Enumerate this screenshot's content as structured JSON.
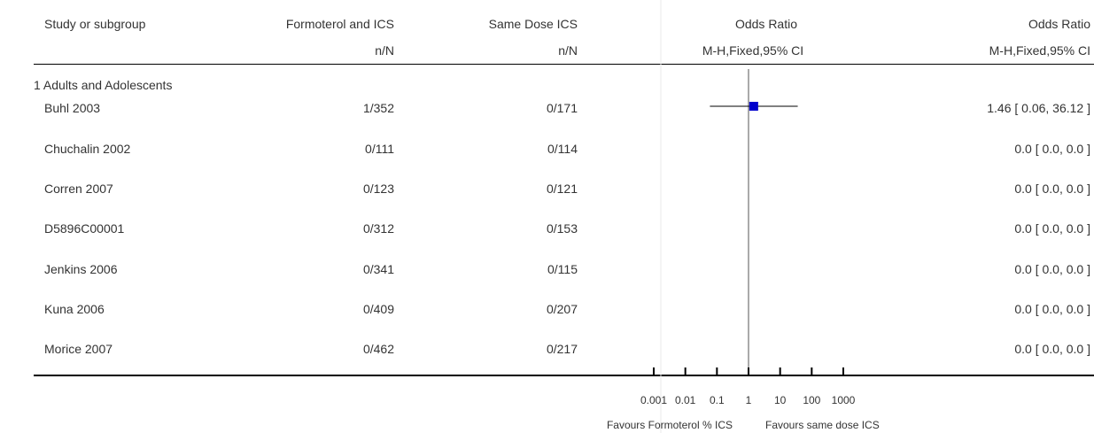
{
  "header": {
    "col_study": "Study or subgroup",
    "col_treat": "Formoterol and ICS",
    "col_ctrl": "Same Dose ICS",
    "col_or_plot": "Odds Ratio",
    "col_or_value": "Odds Ratio",
    "sub_treat": "n/N",
    "sub_ctrl": "n/N",
    "sub_plot": "M-H,Fixed,95% CI",
    "sub_value": "M-H,Fixed,95% CI"
  },
  "subgroup": "1 Adults and Adolescents",
  "rows": [
    {
      "study": "Buhl 2003",
      "treat": "1/352",
      "ctrl": "0/171",
      "ci": "1.46 [ 0.06, 36.12 ]"
    },
    {
      "study": "Chuchalin 2002",
      "treat": "0/111",
      "ctrl": "0/114",
      "ci": "0.0 [ 0.0, 0.0 ]"
    },
    {
      "study": "Corren 2007",
      "treat": "0/123",
      "ctrl": "0/121",
      "ci": "0.0 [ 0.0, 0.0 ]"
    },
    {
      "study": "D5896C00001",
      "treat": "0/312",
      "ctrl": "0/153",
      "ci": "0.0 [ 0.0, 0.0 ]"
    },
    {
      "study": "Jenkins 2006",
      "treat": "0/341",
      "ctrl": "0/115",
      "ci": "0.0 [ 0.0, 0.0 ]"
    },
    {
      "study": "Kuna 2006",
      "treat": "0/409",
      "ctrl": "0/207",
      "ci": "0.0 [ 0.0, 0.0 ]"
    },
    {
      "study": "Morice 2007",
      "treat": "0/462",
      "ctrl": "0/217",
      "ci": "0.0 [ 0.0, 0.0 ]"
    }
  ],
  "axis": {
    "ticks": [
      "0.001",
      "0.01",
      "0.1",
      "1",
      "10",
      "100",
      "1000"
    ],
    "favours_left": "Favours Formoterol % ICS",
    "favours_right": "Favours same dose ICS"
  },
  "chart_data": {
    "type": "forest",
    "scale": "log",
    "xlim": [
      0.001,
      1000
    ],
    "reference_line": 1,
    "studies": [
      {
        "name": "Buhl 2003",
        "or": 1.46,
        "ci_low": 0.06,
        "ci_high": 36.12
      }
    ],
    "colors": {
      "marker": "#0000cc",
      "lines": "#000000"
    }
  }
}
